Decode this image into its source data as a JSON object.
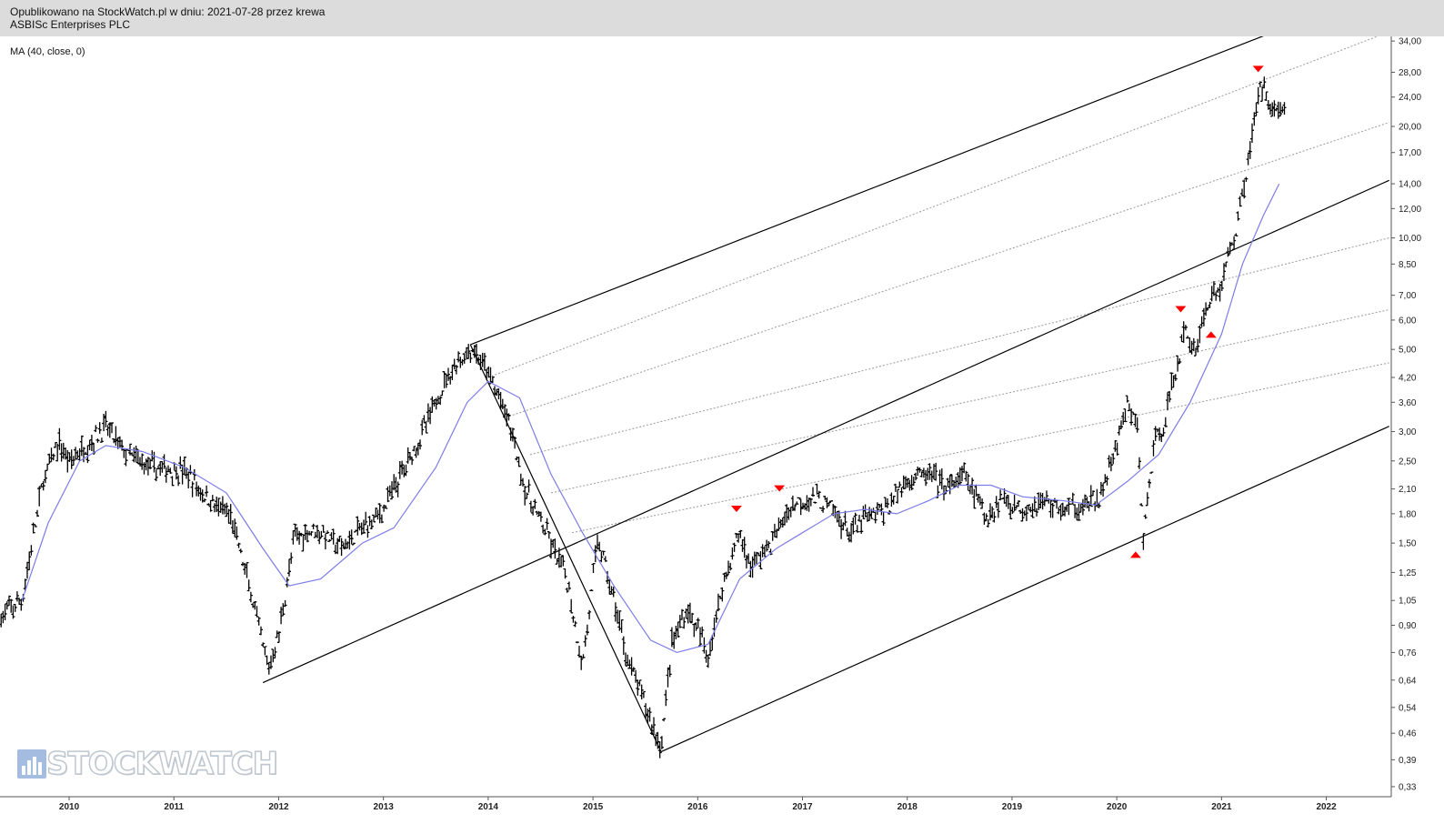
{
  "header": {
    "line1": "Opublikowano na StockWatch.pl w dniu: 2021-07-28 przez krewa",
    "line2": "ASBISc Enterprises PLC"
  },
  "indicator_label": "MA (40, close, 0)",
  "watermark": {
    "text": "STOCKWATCH",
    "icon": "bar-chart-logo-icon"
  },
  "colors": {
    "candles": "#000000",
    "ma": "#7c7ce8",
    "channel": "#000000",
    "fan": "#9a9a9a",
    "markers": "#ff0000",
    "header_bg": "#dcdcdc"
  },
  "chart_data": {
    "type": "candlestick",
    "y_scale": "log",
    "ylim": [
      0.31,
      35.0
    ],
    "xlim": [
      2009.34,
      2022.62
    ],
    "y_ticks": [
      "34,00",
      "28,00",
      "24,00",
      "20,00",
      "17,00",
      "14,00",
      "12,00",
      "10,00",
      "8,50",
      "7,00",
      "6,00",
      "5,00",
      "4,20",
      "3,60",
      "3,00",
      "2,50",
      "2,10",
      "1,80",
      "1,50",
      "1,25",
      "1,05",
      "0,90",
      "0,76",
      "0,64",
      "0,54",
      "0,46",
      "0,39",
      "0,33"
    ],
    "x_ticks": [
      "2010",
      "2011",
      "2012",
      "2013",
      "2014",
      "2015",
      "2016",
      "2017",
      "2018",
      "2019",
      "2020",
      "2021",
      "2022"
    ],
    "price_path": [
      [
        2009.35,
        0.95
      ],
      [
        2009.55,
        1.05
      ],
      [
        2009.75,
        2.2
      ],
      [
        2009.9,
        2.8
      ],
      [
        2010.0,
        2.5
      ],
      [
        2010.2,
        2.8
      ],
      [
        2010.35,
        3.1
      ],
      [
        2010.55,
        2.6
      ],
      [
        2010.8,
        2.4
      ],
      [
        2011.1,
        2.35
      ],
      [
        2011.3,
        2.0
      ],
      [
        2011.55,
        1.75
      ],
      [
        2011.75,
        1.05
      ],
      [
        2011.9,
        0.68
      ],
      [
        2012.0,
        0.85
      ],
      [
        2012.15,
        1.55
      ],
      [
        2012.35,
        1.65
      ],
      [
        2012.6,
        1.45
      ],
      [
        2012.8,
        1.65
      ],
      [
        2013.0,
        1.85
      ],
      [
        2013.2,
        2.4
      ],
      [
        2013.4,
        3.1
      ],
      [
        2013.6,
        4.2
      ],
      [
        2013.7,
        4.6
      ],
      [
        2013.85,
        5.0
      ],
      [
        2014.0,
        4.3
      ],
      [
        2014.2,
        3.2
      ],
      [
        2014.35,
        2.1
      ],
      [
        2014.55,
        1.6
      ],
      [
        2014.75,
        1.2
      ],
      [
        2014.9,
        0.7
      ],
      [
        2015.05,
        1.55
      ],
      [
        2015.2,
        1.05
      ],
      [
        2015.35,
        0.7
      ],
      [
        2015.5,
        0.55
      ],
      [
        2015.65,
        0.42
      ],
      [
        2015.75,
        0.8
      ],
      [
        2015.9,
        1.0
      ],
      [
        2016.1,
        0.75
      ],
      [
        2016.25,
        1.2
      ],
      [
        2016.4,
        1.6
      ],
      [
        2016.5,
        1.3
      ],
      [
        2016.7,
        1.5
      ],
      [
        2016.9,
        1.9
      ],
      [
        2017.05,
        2.0
      ],
      [
        2017.25,
        1.9
      ],
      [
        2017.45,
        1.6
      ],
      [
        2017.6,
        1.75
      ],
      [
        2017.8,
        1.85
      ],
      [
        2018.0,
        2.25
      ],
      [
        2018.2,
        2.3
      ],
      [
        2018.4,
        2.1
      ],
      [
        2018.55,
        2.3
      ],
      [
        2018.75,
        1.75
      ],
      [
        2018.9,
        2.0
      ],
      [
        2019.1,
        1.85
      ],
      [
        2019.3,
        1.95
      ],
      [
        2019.5,
        1.85
      ],
      [
        2019.7,
        1.9
      ],
      [
        2019.85,
        2.0
      ],
      [
        2020.0,
        2.8
      ],
      [
        2020.1,
        3.5
      ],
      [
        2020.2,
        3.1
      ],
      [
        2020.25,
        1.5
      ],
      [
        2020.35,
        2.7
      ],
      [
        2020.45,
        3.2
      ],
      [
        2020.55,
        4.2
      ],
      [
        2020.65,
        5.6
      ],
      [
        2020.75,
        5.0
      ],
      [
        2020.85,
        6.5
      ],
      [
        2021.0,
        7.5
      ],
      [
        2021.15,
        11.0
      ],
      [
        2021.25,
        16.0
      ],
      [
        2021.35,
        24.0
      ],
      [
        2021.4,
        26.0
      ],
      [
        2021.5,
        22.0
      ],
      [
        2021.6,
        22.5
      ]
    ],
    "ma_path": [
      [
        2009.55,
        1.05
      ],
      [
        2009.8,
        1.7
      ],
      [
        2010.1,
        2.5
      ],
      [
        2010.35,
        2.75
      ],
      [
        2010.7,
        2.65
      ],
      [
        2011.1,
        2.4
      ],
      [
        2011.5,
        2.05
      ],
      [
        2011.85,
        1.45
      ],
      [
        2012.1,
        1.15
      ],
      [
        2012.4,
        1.2
      ],
      [
        2012.8,
        1.5
      ],
      [
        2013.1,
        1.65
      ],
      [
        2013.5,
        2.4
      ],
      [
        2013.8,
        3.6
      ],
      [
        2014.0,
        4.1
      ],
      [
        2014.3,
        3.7
      ],
      [
        2014.6,
        2.3
      ],
      [
        2014.9,
        1.6
      ],
      [
        2015.2,
        1.15
      ],
      [
        2015.55,
        0.82
      ],
      [
        2015.8,
        0.76
      ],
      [
        2016.1,
        0.8
      ],
      [
        2016.4,
        1.2
      ],
      [
        2016.75,
        1.45
      ],
      [
        2017.0,
        1.6
      ],
      [
        2017.3,
        1.8
      ],
      [
        2017.6,
        1.85
      ],
      [
        2017.9,
        1.8
      ],
      [
        2018.2,
        1.95
      ],
      [
        2018.5,
        2.15
      ],
      [
        2018.8,
        2.15
      ],
      [
        2019.1,
        2.0
      ],
      [
        2019.5,
        1.95
      ],
      [
        2019.8,
        1.9
      ],
      [
        2020.1,
        2.2
      ],
      [
        2020.4,
        2.6
      ],
      [
        2020.7,
        3.6
      ],
      [
        2021.0,
        5.5
      ],
      [
        2021.2,
        8.5
      ],
      [
        2021.4,
        11.5
      ],
      [
        2021.55,
        14.0
      ]
    ],
    "channel_lines": [
      {
        "x": [
          2013.83,
          2021.5
        ],
        "y": [
          5.15,
          36.0
        ]
      },
      {
        "x": [
          2011.85,
          2022.6
        ],
        "y": [
          0.63,
          14.3
        ]
      },
      {
        "x": [
          2015.65,
          2022.6
        ],
        "y": [
          0.41,
          3.1
        ]
      },
      {
        "x": [
          2013.83,
          2015.65
        ],
        "y": [
          5.15,
          0.41
        ]
      }
    ],
    "fan_lines": [
      {
        "x": [
          2014.0,
          2022.6
        ],
        "y": [
          4.2,
          36.0
        ]
      },
      {
        "x": [
          2014.2,
          2022.6
        ],
        "y": [
          3.3,
          20.5
        ]
      },
      {
        "x": [
          2014.4,
          2022.6
        ],
        "y": [
          2.6,
          10.0
        ]
      },
      {
        "x": [
          2014.6,
          2022.6
        ],
        "y": [
          2.05,
          6.4
        ]
      },
      {
        "x": [
          2014.8,
          2022.6
        ],
        "y": [
          1.6,
          4.6
        ]
      }
    ],
    "markers": [
      {
        "x": 2016.37,
        "y": 1.85,
        "dir": "down"
      },
      {
        "x": 2016.78,
        "y": 2.1,
        "dir": "down"
      },
      {
        "x": 2020.18,
        "y": 1.4,
        "dir": "up"
      },
      {
        "x": 2020.61,
        "y": 6.4,
        "dir": "down"
      },
      {
        "x": 2020.9,
        "y": 5.5,
        "dir": "up"
      },
      {
        "x": 2021.35,
        "y": 28.5,
        "dir": "down"
      }
    ]
  }
}
